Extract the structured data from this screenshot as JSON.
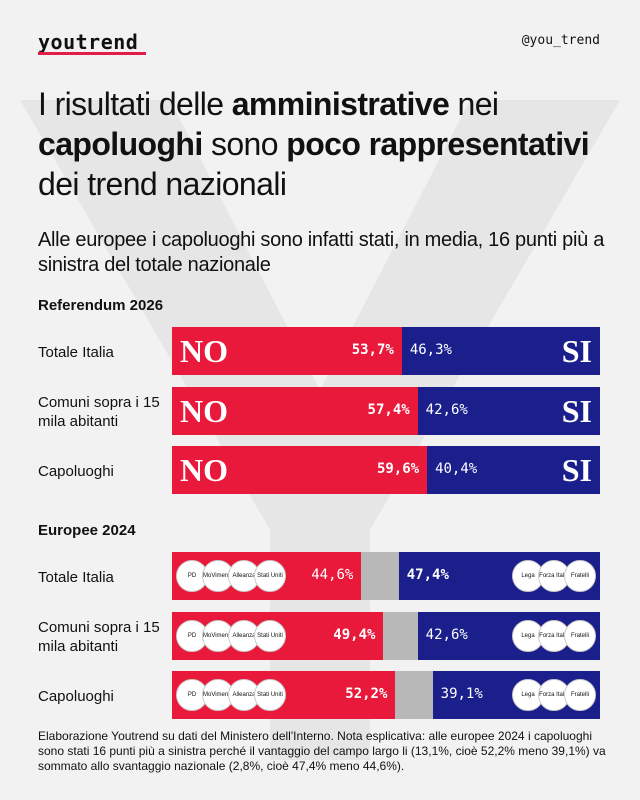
{
  "brand": {
    "logo": "youtrend",
    "handle": "@you_trend"
  },
  "title": {
    "parts": [
      {
        "text": "I risultati delle ",
        "bold": false
      },
      {
        "text": "amministrative",
        "bold": true
      },
      {
        "text": " nei ",
        "bold": false
      },
      {
        "text": "capoluoghi",
        "bold": true
      },
      {
        "text": " sono ",
        "bold": false
      },
      {
        "text": "poco rappresentativi",
        "bold": true
      },
      {
        "text": " dei trend nazionali",
        "bold": false
      }
    ]
  },
  "subtitle": "Alle europee i capoluoghi sono infatti stati, in media, 16 punti più a sinistra del totale nazionale",
  "colors": {
    "red": "#e8193b",
    "blue": "#1a1f8c",
    "gray": "#b8b8b8",
    "bg": "#f2f2f2"
  },
  "chart_data": [
    {
      "type": "bar",
      "title": "Referendum 2026",
      "categories": [
        "Totale Italia",
        "Comuni sopra i 15 mila abitanti",
        "Capoluoghi"
      ],
      "series": [
        {
          "name": "NO",
          "values": [
            53.7,
            57.4,
            59.6
          ],
          "labels": [
            "53,7%",
            "57,4%",
            "59,6%"
          ]
        },
        {
          "name": "SI",
          "values": [
            46.3,
            42.6,
            40.4
          ],
          "labels": [
            "46,3%",
            "42,6%",
            "40,4%"
          ]
        }
      ],
      "marks": {
        "left": "NO",
        "right": "SI"
      }
    },
    {
      "type": "bar",
      "title": "Europee 2024",
      "categories": [
        "Totale Italia",
        "Comuni sopra i 15 mila abitanti",
        "Capoluoghi"
      ],
      "series": [
        {
          "values": [
            44.6,
            49.4,
            52.2
          ],
          "labels": [
            "44,6%",
            "49,4%",
            "52,2%"
          ]
        },
        {
          "values": [
            8.8,
            8.0,
            8.7
          ]
        },
        {
          "values": [
            47.4,
            42.6,
            39.1
          ],
          "labels": [
            "47,4%",
            "42,6%",
            "39,1%"
          ]
        }
      ],
      "party_logos": {
        "left": [
          "PD",
          "MoVimento 5 Stelle 2050",
          "Alleanza Verdi Sinistra",
          "Stati Uniti d'Europa"
        ],
        "right": [
          "Lega Salvini Premier",
          "Forza Italia Berlusconi",
          "Fratelli d'Italia Giorgia Meloni"
        ]
      }
    }
  ],
  "footer": "Elaborazione Youtrend su dati del Ministero dell'Interno. Nota esplicativa: alle europee 2024 i capoluoghi sono stati 16 punti più a sinistra perché il vantaggio del campo largo li (13,1%, cioè 52,2% meno 39,1%) va sommato allo svantaggio nazionale (2,8%, cioè 47,4% meno 44,6%)."
}
